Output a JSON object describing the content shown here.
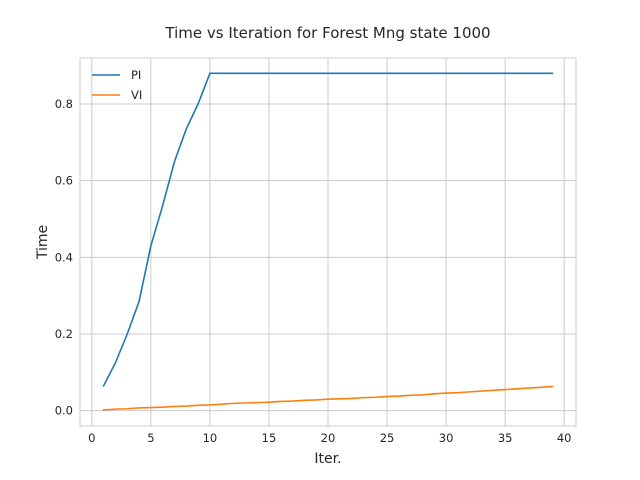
{
  "chart_data": {
    "type": "line",
    "title": "Time vs Iteration for Forest Mng state 1000",
    "xlabel": "Iter.",
    "ylabel": "Time",
    "xlim": [
      -1,
      41
    ],
    "ylim": [
      -0.04,
      0.92
    ],
    "xticks": [
      0,
      5,
      10,
      15,
      20,
      25,
      30,
      35,
      40
    ],
    "xtick_labels": [
      "0",
      "5",
      "10",
      "15",
      "20",
      "25",
      "30",
      "35",
      "40"
    ],
    "yticks": [
      0.0,
      0.2,
      0.4,
      0.6,
      0.8
    ],
    "ytick_labels": [
      "0.0",
      "0.2",
      "0.4",
      "0.6",
      "0.8"
    ],
    "grid": true,
    "legend_position": "top-left",
    "series": [
      {
        "name": "PI",
        "color": "#1f77b4",
        "x": [
          1,
          2,
          3,
          4,
          5,
          6,
          7,
          8,
          9,
          10,
          11,
          12,
          13,
          14,
          15,
          16,
          17,
          18,
          19,
          20,
          21,
          22,
          23,
          24,
          25,
          26,
          27,
          28,
          29,
          30,
          31,
          32,
          33,
          34,
          35,
          36,
          37,
          38,
          39
        ],
        "values": [
          0.065,
          0.125,
          0.2,
          0.285,
          0.43,
          0.535,
          0.65,
          0.735,
          0.8,
          0.88,
          0.88,
          0.88,
          0.88,
          0.88,
          0.88,
          0.88,
          0.88,
          0.88,
          0.88,
          0.88,
          0.88,
          0.88,
          0.88,
          0.88,
          0.88,
          0.88,
          0.88,
          0.88,
          0.88,
          0.88,
          0.88,
          0.88,
          0.88,
          0.88,
          0.88,
          0.88,
          0.88,
          0.88,
          0.88
        ]
      },
      {
        "name": "VI",
        "color": "#ff7f0e",
        "x": [
          1,
          2,
          3,
          4,
          5,
          6,
          7,
          8,
          9,
          10,
          11,
          12,
          13,
          14,
          15,
          16,
          17,
          18,
          19,
          20,
          21,
          22,
          23,
          24,
          25,
          26,
          27,
          28,
          29,
          30,
          31,
          32,
          33,
          34,
          35,
          36,
          37,
          38,
          39
        ],
        "values": [
          0.002,
          0.004,
          0.005,
          0.007,
          0.008,
          0.009,
          0.011,
          0.012,
          0.014,
          0.015,
          0.017,
          0.019,
          0.02,
          0.021,
          0.022,
          0.024,
          0.025,
          0.027,
          0.028,
          0.03,
          0.031,
          0.032,
          0.034,
          0.035,
          0.037,
          0.038,
          0.04,
          0.041,
          0.044,
          0.046,
          0.047,
          0.049,
          0.051,
          0.053,
          0.055,
          0.057,
          0.059,
          0.061,
          0.063
        ]
      }
    ]
  }
}
